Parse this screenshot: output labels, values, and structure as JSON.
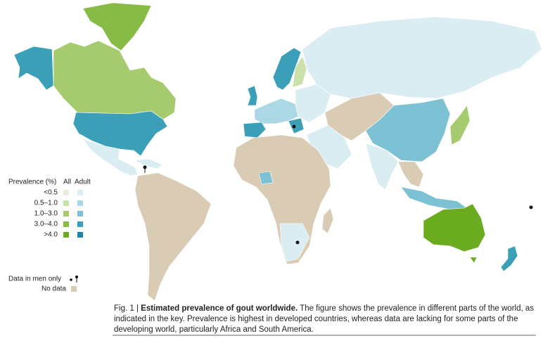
{
  "legend": {
    "title": "Prevalence (%)",
    "columns": [
      "All",
      "Adult"
    ],
    "items": [
      {
        "label": "<0.5",
        "all_color": "#e5efd9",
        "adult_color": "#d9edf3"
      },
      {
        "label": "0.5–1.0",
        "all_color": "#cbe1aa",
        "adult_color": "#acd8e5"
      },
      {
        "label": "1.0–3.0",
        "all_color": "#a6cb6e",
        "adult_color": "#7cc1d4"
      },
      {
        "label": "3.0–4.0",
        "all_color": "#88bb45",
        "adult_color": "#3c9fb8"
      },
      {
        "label": ">4.0",
        "all_color": "#6aab1f",
        "adult_color": "#1b88a2"
      }
    ],
    "men_only": "Data in men only",
    "no_data": "No data",
    "no_data_color": "#d9cbb4"
  },
  "caption": {
    "label": "Fig. 1 |",
    "title": "Estimated prevalence of gout worldwide.",
    "lines": [
      "The figure shows the prevalence in different parts of the world, as",
      "indicated in the key. Prevalence is highest in developed countries, whereas data are lacking for some parts of the",
      "developing world, particularly Africa and South America."
    ]
  }
}
